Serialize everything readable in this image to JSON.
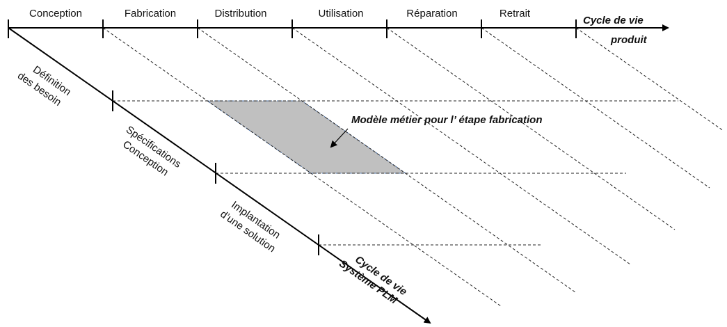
{
  "product_axis": {
    "phases": [
      "Conception",
      "Fabrication",
      "Distribution",
      "Utilisation",
      "Réparation",
      "Retrait"
    ],
    "label": [
      "Cycle de vie",
      "produit"
    ]
  },
  "plm_axis": {
    "phases": [
      [
        "Définition",
        "des besoin"
      ],
      [
        "Spécifications",
        "Conception"
      ],
      [
        "Implantation",
        "d’une solution"
      ]
    ],
    "label": [
      "Cycle de vie",
      "Système PLM"
    ]
  },
  "annotation": "Modèle métier pour l’ étape fabrication"
}
